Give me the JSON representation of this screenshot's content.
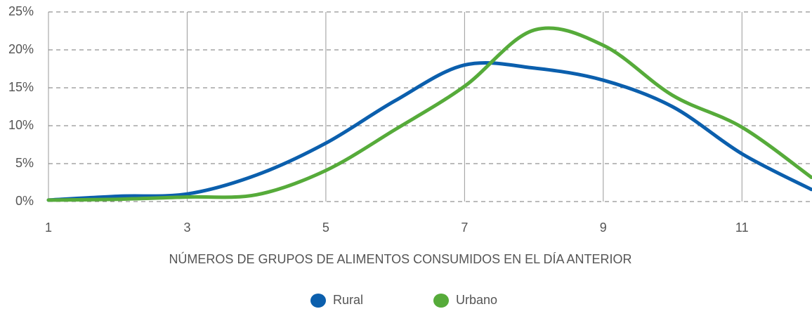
{
  "chart_data": {
    "type": "line",
    "xlabel": "NÚMEROS DE GRUPOS DE ALIMENTOS CONSUMIDOS EN EL DÍA ANTERIOR",
    "x": [
      1,
      2,
      3,
      4,
      5,
      6,
      7,
      8,
      9,
      10,
      11,
      12
    ],
    "series": [
      {
        "name": "Rural",
        "color": "#0b5fad",
        "values": [
          0.2,
          0.7,
          1.0,
          3.5,
          7.7,
          13.3,
          18.0,
          17.6,
          16.0,
          12.5,
          6.3,
          1.6
        ]
      },
      {
        "name": "Urbano",
        "color": "#56ab3a",
        "values": [
          0.2,
          0.3,
          0.6,
          0.9,
          4.1,
          9.5,
          15.2,
          22.6,
          20.6,
          14.0,
          9.8,
          3.2
        ]
      }
    ],
    "xlim": [
      1,
      12
    ],
    "xticks": [
      1,
      3,
      5,
      7,
      9,
      11
    ],
    "ylim": [
      0,
      25
    ],
    "yticks": [
      {
        "value": 0,
        "label": "0%"
      },
      {
        "value": 5,
        "label": "5%"
      },
      {
        "value": 10,
        "label": "10%"
      },
      {
        "value": 15,
        "label": "15%"
      },
      {
        "value": 20,
        "label": "20%"
      },
      {
        "value": 25,
        "label": "25%"
      }
    ],
    "grid": true,
    "legend": "bottom"
  }
}
